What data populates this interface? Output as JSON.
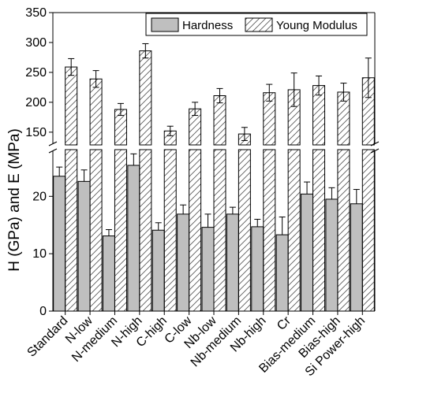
{
  "chart_data": {
    "type": "bar",
    "title": "",
    "ylabel": "H (GPa) and E (MPa)",
    "xlabel": "",
    "axis_break": {
      "lower_range": [
        0,
        28
      ],
      "upper_range": [
        130,
        350
      ]
    },
    "y_ticks_lower": [
      0,
      10,
      20
    ],
    "y_ticks_upper": [
      150,
      200,
      250,
      300,
      350
    ],
    "legend_position": "top-right",
    "categories": [
      "Standard",
      "N-low",
      "N-medium",
      "N-high",
      "C-high",
      "C-low",
      "Nb-low",
      "Nb-medium",
      "Nb-high",
      "Cr",
      "Bias-medium",
      "Bias-high",
      "Si Power-high"
    ],
    "series": [
      {
        "name": "Hardness",
        "fill": "#bfbfbf",
        "pattern": "solid",
        "values": [
          23.5,
          22.6,
          13.1,
          25.4,
          14.1,
          16.9,
          14.6,
          16.9,
          14.7,
          13.3,
          20.4,
          19.5,
          18.7
        ],
        "errors": [
          1.6,
          2.0,
          1.1,
          2.0,
          1.3,
          1.6,
          2.3,
          1.2,
          1.3,
          3.1,
          2.1,
          2.0,
          2.5
        ]
      },
      {
        "name": "Young Modulus",
        "fill": "#ffffff",
        "pattern": "hatched",
        "values": [
          259,
          239,
          188,
          286,
          152,
          189,
          211,
          147,
          216,
          221,
          228,
          217,
          241
        ],
        "errors": [
          14,
          14,
          10,
          12,
          8,
          11,
          12,
          11,
          14,
          28,
          16,
          15,
          33
        ]
      }
    ]
  }
}
